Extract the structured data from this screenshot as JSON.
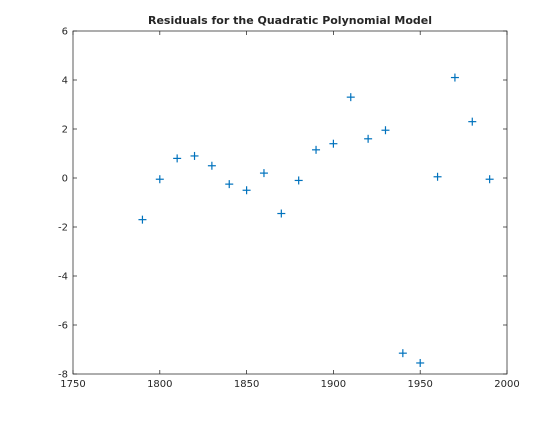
{
  "chart_data": {
    "type": "scatter",
    "title": "Residuals for the Quadratic Polynomial Model",
    "xlabel": "",
    "ylabel": "",
    "xlim": [
      1750,
      2000
    ],
    "ylim": [
      -8,
      6
    ],
    "xticks": [
      1750,
      1800,
      1850,
      1900,
      1950,
      2000
    ],
    "yticks": [
      -8,
      -6,
      -4,
      -2,
      0,
      2,
      4,
      6
    ],
    "grid": false,
    "marker": "+",
    "marker_color": "#0072BD",
    "series": [
      {
        "x": [
          1790,
          1800,
          1810,
          1820,
          1830,
          1840,
          1850,
          1860,
          1870,
          1880,
          1890,
          1900,
          1910,
          1920,
          1930,
          1940,
          1950,
          1960,
          1970,
          1980,
          1990
        ],
        "y": [
          -1.7,
          -0.05,
          0.8,
          0.9,
          0.5,
          -0.25,
          -0.5,
          0.2,
          -1.45,
          -0.1,
          1.15,
          1.4,
          3.3,
          1.6,
          1.95,
          -7.15,
          -7.55,
          0.05,
          4.1,
          2.3,
          -0.05
        ]
      }
    ]
  }
}
